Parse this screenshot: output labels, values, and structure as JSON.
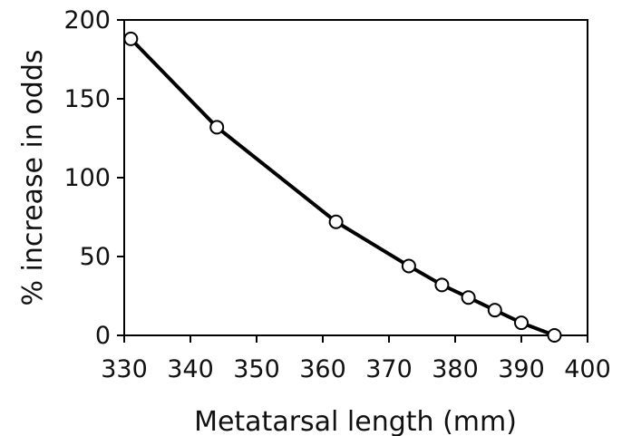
{
  "chart_data": {
    "type": "line",
    "xlabel": "Metatarsal length (mm)",
    "ylabel": "% increase in odds",
    "xlim": [
      330,
      400
    ],
    "ylim": [
      0,
      200
    ],
    "x_ticks": [
      330,
      340,
      350,
      360,
      370,
      380,
      390,
      400
    ],
    "y_ticks": [
      0,
      50,
      100,
      150,
      200
    ],
    "grid": false,
    "legend": "none",
    "series": [
      {
        "x": [
          331,
          344,
          362,
          373,
          378,
          382,
          386,
          390,
          395
        ],
        "y": [
          188,
          132,
          72,
          44,
          32,
          24,
          16,
          8,
          0
        ]
      }
    ],
    "colors": {
      "line": "#000000",
      "marker_fill": "#ffffff",
      "marker_stroke": "#000000",
      "axis": "#000000"
    }
  }
}
